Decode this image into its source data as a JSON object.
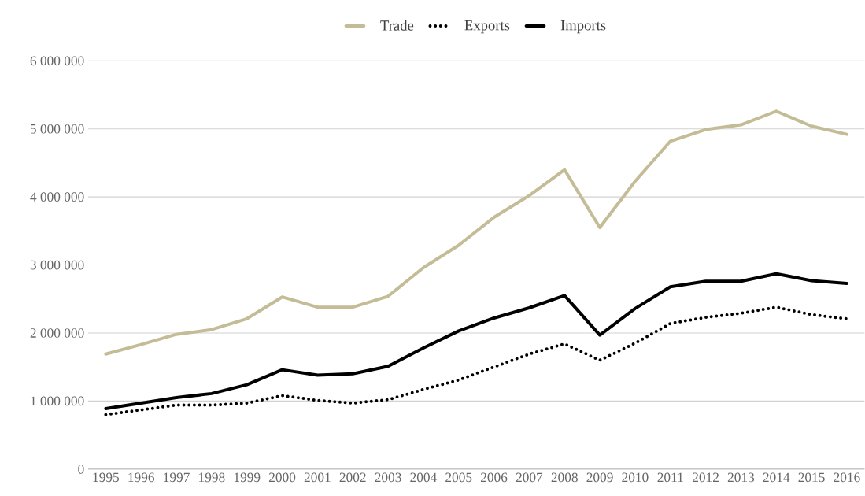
{
  "chart_data": {
    "type": "line",
    "categories": [
      "1995",
      "1996",
      "1997",
      "1998",
      "1999",
      "2000",
      "2001",
      "2002",
      "2003",
      "2004",
      "2005",
      "2006",
      "2007",
      "2008",
      "2009",
      "2010",
      "2011",
      "2012",
      "2013",
      "2014",
      "2015",
      "2016"
    ],
    "series": [
      {
        "name": "Trade",
        "color": "#c4bc96",
        "line_style": "solid",
        "values": [
          1690000,
          1830000,
          1980000,
          2050000,
          2210000,
          2530000,
          2380000,
          2380000,
          2540000,
          2960000,
          3290000,
          3700000,
          4020000,
          4400000,
          3550000,
          4230000,
          4820000,
          4990000,
          5060000,
          5260000,
          5040000,
          4920000
        ]
      },
      {
        "name": "Exports",
        "color": "#000000",
        "line_style": "dotted",
        "values": [
          800000,
          870000,
          940000,
          940000,
          970000,
          1080000,
          1010000,
          970000,
          1020000,
          1170000,
          1310000,
          1500000,
          1690000,
          1840000,
          1600000,
          1850000,
          2140000,
          2230000,
          2290000,
          2380000,
          2270000,
          2210000
        ]
      },
      {
        "name": "Imports",
        "color": "#000000",
        "line_style": "solid",
        "values": [
          890000,
          970000,
          1050000,
          1110000,
          1240000,
          1460000,
          1380000,
          1400000,
          1510000,
          1780000,
          2030000,
          2220000,
          2370000,
          2550000,
          1970000,
          2360000,
          2680000,
          2760000,
          2760000,
          2870000,
          2770000,
          2730000
        ]
      }
    ],
    "ylim": [
      0,
      6000000
    ],
    "yticks": [
      {
        "value": 0,
        "label": "0"
      },
      {
        "value": 1000000,
        "label": "1 000 000"
      },
      {
        "value": 2000000,
        "label": "2 000 000"
      },
      {
        "value": 3000000,
        "label": "3 000 000"
      },
      {
        "value": 4000000,
        "label": "4 000 000"
      },
      {
        "value": 5000000,
        "label": "5 000 000"
      },
      {
        "value": 6000000,
        "label": "6 000 000"
      }
    ],
    "grid": "y",
    "legend": "top",
    "marker": "none"
  }
}
